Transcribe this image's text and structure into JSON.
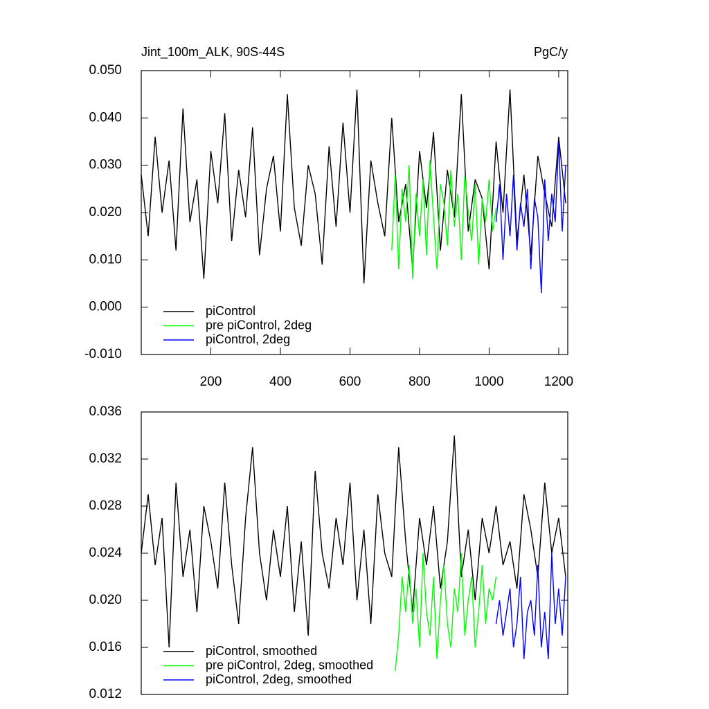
{
  "chart_data": [
    {
      "type": "line",
      "title": "Jint_100m_ALK, 90S-44S",
      "units": "PgC/y",
      "xlim": [
        0,
        1226
      ],
      "ylim": [
        -0.01,
        0.05
      ],
      "xticks": [
        200,
        400,
        600,
        800,
        1000,
        1200
      ],
      "yticks": [
        {
          "value": -0.01,
          "label": "-0.010"
        },
        {
          "value": 0,
          "label": "0.000"
        },
        {
          "value": 0.01,
          "label": "0.010"
        },
        {
          "value": 0.02,
          "label": "0.020"
        },
        {
          "value": 0.03,
          "label": "0.030"
        },
        {
          "value": 0.04,
          "label": "0.040"
        },
        {
          "value": 0.05,
          "label": "0.050"
        }
      ],
      "series": [
        {
          "name": "piControl",
          "color": "#000000",
          "x": [
            0,
            20,
            40,
            60,
            80,
            100,
            120,
            140,
            160,
            180,
            200,
            220,
            240,
            260,
            280,
            300,
            320,
            340,
            360,
            380,
            400,
            420,
            440,
            460,
            480,
            500,
            520,
            540,
            560,
            580,
            600,
            620,
            640,
            660,
            680,
            700,
            720,
            740,
            760,
            780,
            800,
            820,
            840,
            860,
            880,
            900,
            920,
            940,
            960,
            980,
            1000,
            1020,
            1040,
            1060,
            1080,
            1100,
            1120,
            1140,
            1160,
            1180,
            1200,
            1220
          ],
          "values": [
            0.028,
            0.015,
            0.036,
            0.02,
            0.031,
            0.012,
            0.042,
            0.018,
            0.027,
            0.006,
            0.033,
            0.022,
            0.041,
            0.014,
            0.029,
            0.019,
            0.038,
            0.011,
            0.025,
            0.032,
            0.016,
            0.045,
            0.021,
            0.013,
            0.03,
            0.024,
            0.009,
            0.034,
            0.017,
            0.039,
            0.02,
            0.046,
            0.005,
            0.031,
            0.022,
            0.015,
            0.04,
            0.018,
            0.026,
            0.008,
            0.033,
            0.021,
            0.037,
            0.012,
            0.029,
            0.019,
            0.045,
            0.016,
            0.027,
            0.023,
            0.008,
            0.035,
            0.02,
            0.046,
            0.014,
            0.028,
            0.011,
            0.032,
            0.024,
            0.017,
            0.036,
            0.022
          ]
        },
        {
          "name": "pre piControl, 2deg",
          "color": "#00ff00",
          "x": [
            720,
            730,
            740,
            750,
            760,
            770,
            780,
            790,
            800,
            810,
            820,
            830,
            840,
            850,
            860,
            870,
            880,
            890,
            900,
            910,
            920,
            930,
            940,
            950,
            960,
            970,
            980,
            990,
            1000,
            1010,
            1020
          ],
          "values": [
            0.012,
            0.028,
            0.008,
            0.025,
            0.018,
            0.03,
            0.006,
            0.024,
            0.015,
            0.027,
            0.011,
            0.031,
            0.019,
            0.008,
            0.026,
            0.022,
            0.013,
            0.029,
            0.017,
            0.024,
            0.01,
            0.028,
            0.02,
            0.014,
            0.026,
            0.009,
            0.023,
            0.018,
            0.027,
            0.016,
            0.021
          ]
        },
        {
          "name": "piControl, 2deg",
          "color": "#0000ff",
          "x": [
            1020,
            1030,
            1040,
            1050,
            1060,
            1070,
            1080,
            1090,
            1100,
            1110,
            1120,
            1130,
            1140,
            1150,
            1160,
            1170,
            1180,
            1190,
            1200,
            1210,
            1220
          ],
          "values": [
            0.018,
            0.026,
            0.01,
            0.024,
            0.015,
            0.028,
            0.012,
            0.022,
            0.017,
            0.025,
            0.008,
            0.023,
            0.019,
            0.003,
            0.027,
            0.014,
            0.024,
            0.018,
            0.035,
            0.016,
            0.03
          ]
        }
      ]
    },
    {
      "type": "line",
      "xlim": [
        0,
        1226
      ],
      "ylim": [
        0.012,
        0.036
      ],
      "yticks": [
        {
          "value": 0.012,
          "label": "0.012"
        },
        {
          "value": 0.016,
          "label": "0.016"
        },
        {
          "value": 0.02,
          "label": "0.020"
        },
        {
          "value": 0.024,
          "label": "0.024"
        },
        {
          "value": 0.028,
          "label": "0.028"
        },
        {
          "value": 0.032,
          "label": "0.032"
        },
        {
          "value": 0.036,
          "label": "0.036"
        }
      ],
      "series": [
        {
          "name": "piControl, smoothed",
          "color": "#000000",
          "x": [
            0,
            20,
            40,
            60,
            80,
            100,
            120,
            140,
            160,
            180,
            200,
            220,
            240,
            260,
            280,
            300,
            320,
            340,
            360,
            380,
            400,
            420,
            440,
            460,
            480,
            500,
            520,
            540,
            560,
            580,
            600,
            620,
            640,
            660,
            680,
            700,
            720,
            740,
            760,
            780,
            800,
            820,
            840,
            860,
            880,
            900,
            920,
            940,
            960,
            980,
            1000,
            1020,
            1040,
            1060,
            1080,
            1100,
            1120,
            1140,
            1160,
            1180,
            1200,
            1220
          ],
          "values": [
            0.024,
            0.029,
            0.023,
            0.027,
            0.016,
            0.03,
            0.022,
            0.026,
            0.019,
            0.028,
            0.025,
            0.021,
            0.03,
            0.023,
            0.018,
            0.027,
            0.033,
            0.024,
            0.02,
            0.026,
            0.022,
            0.028,
            0.019,
            0.025,
            0.017,
            0.031,
            0.024,
            0.021,
            0.027,
            0.023,
            0.03,
            0.02,
            0.026,
            0.018,
            0.029,
            0.024,
            0.022,
            0.033,
            0.025,
            0.019,
            0.027,
            0.023,
            0.028,
            0.021,
            0.025,
            0.034,
            0.022,
            0.026,
            0.02,
            0.027,
            0.024,
            0.028,
            0.023,
            0.025,
            0.021,
            0.029,
            0.026,
            0.022,
            0.03,
            0.024,
            0.027,
            0.022
          ]
        },
        {
          "name": "pre piControl, 2deg, smoothed",
          "color": "#00ff00",
          "x": [
            730,
            740,
            750,
            760,
            770,
            780,
            790,
            800,
            810,
            820,
            830,
            840,
            850,
            860,
            870,
            880,
            890,
            900,
            910,
            920,
            930,
            940,
            950,
            960,
            970,
            980,
            990,
            1000,
            1010,
            1020
          ],
          "values": [
            0.014,
            0.017,
            0.022,
            0.019,
            0.023,
            0.018,
            0.021,
            0.016,
            0.024,
            0.019,
            0.017,
            0.022,
            0.015,
            0.02,
            0.023,
            0.018,
            0.016,
            0.021,
            0.019,
            0.024,
            0.017,
            0.02,
            0.022,
            0.016,
            0.019,
            0.023,
            0.018,
            0.021,
            0.02,
            0.022
          ]
        },
        {
          "name": "piControl, 2deg, smoothed",
          "color": "#0000ff",
          "x": [
            1020,
            1030,
            1040,
            1050,
            1060,
            1070,
            1080,
            1090,
            1100,
            1110,
            1120,
            1130,
            1140,
            1150,
            1160,
            1170,
            1180,
            1190,
            1200,
            1210,
            1220
          ],
          "values": [
            0.018,
            0.02,
            0.017,
            0.019,
            0.021,
            0.016,
            0.018,
            0.022,
            0.015,
            0.019,
            0.02,
            0.017,
            0.023,
            0.016,
            0.019,
            0.015,
            0.024,
            0.018,
            0.021,
            0.017,
            0.022
          ]
        }
      ]
    }
  ]
}
